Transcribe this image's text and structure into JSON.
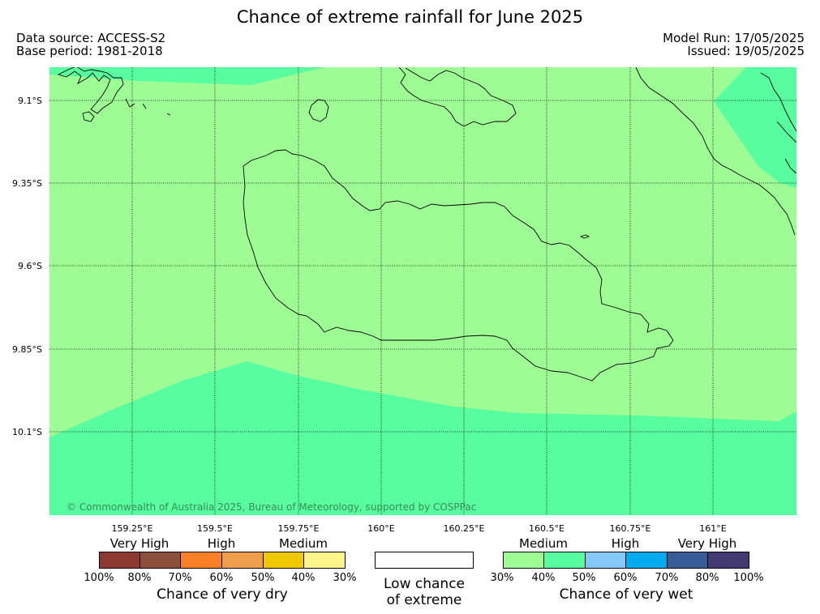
{
  "header": {
    "title": "Chance of extreme rainfall for June 2025",
    "data_source": "Data source: ACCESS-S2",
    "base_period": "Base period: 1981-2018",
    "model_run": "Model Run: 17/05/2025",
    "issued": "Issued: 19/05/2025"
  },
  "map": {
    "lat_labels": [
      "9.1°S",
      "9.35°S",
      "9.6°S",
      "9.85°S",
      "10.1°S"
    ],
    "lon_labels": [
      "159.25°E",
      "159.5°E",
      "159.75°E",
      "160°E",
      "160.25°E",
      "160.5°E",
      "160.75°E",
      "161°E"
    ],
    "copyright": "© Commonwealth of Australia 2025, Bureau of Meteorology, supported by COSPPac",
    "colors": {
      "background_zone": "#9efc95",
      "wet_40_50_zone": "#57fd9e",
      "coastline": "#000000",
      "gridline": "#000000"
    }
  },
  "legend": {
    "dry": {
      "categories": [
        "Very High",
        "High",
        "Medium"
      ],
      "ticks": [
        "100%",
        "80%",
        "70%",
        "60%",
        "50%",
        "40%",
        "30%"
      ],
      "colors": [
        "#8d3931",
        "#8b4f3b",
        "#fb7f27",
        "#ef9e4c",
        "#f0c800",
        "#fef58a"
      ],
      "caption": "Chance of very dry"
    },
    "neutral": {
      "caption_line1": "Low chance",
      "caption_line2": "of extreme"
    },
    "wet": {
      "categories": [
        "Medium",
        "High",
        "Very High"
      ],
      "ticks": [
        "30%",
        "40%",
        "50%",
        "60%",
        "70%",
        "80%",
        "100%"
      ],
      "colors": [
        "#9efc95",
        "#57fd9e",
        "#85c8fa",
        "#00aaef",
        "#365c96",
        "#433a72"
      ],
      "caption": "Chance of very wet"
    }
  }
}
